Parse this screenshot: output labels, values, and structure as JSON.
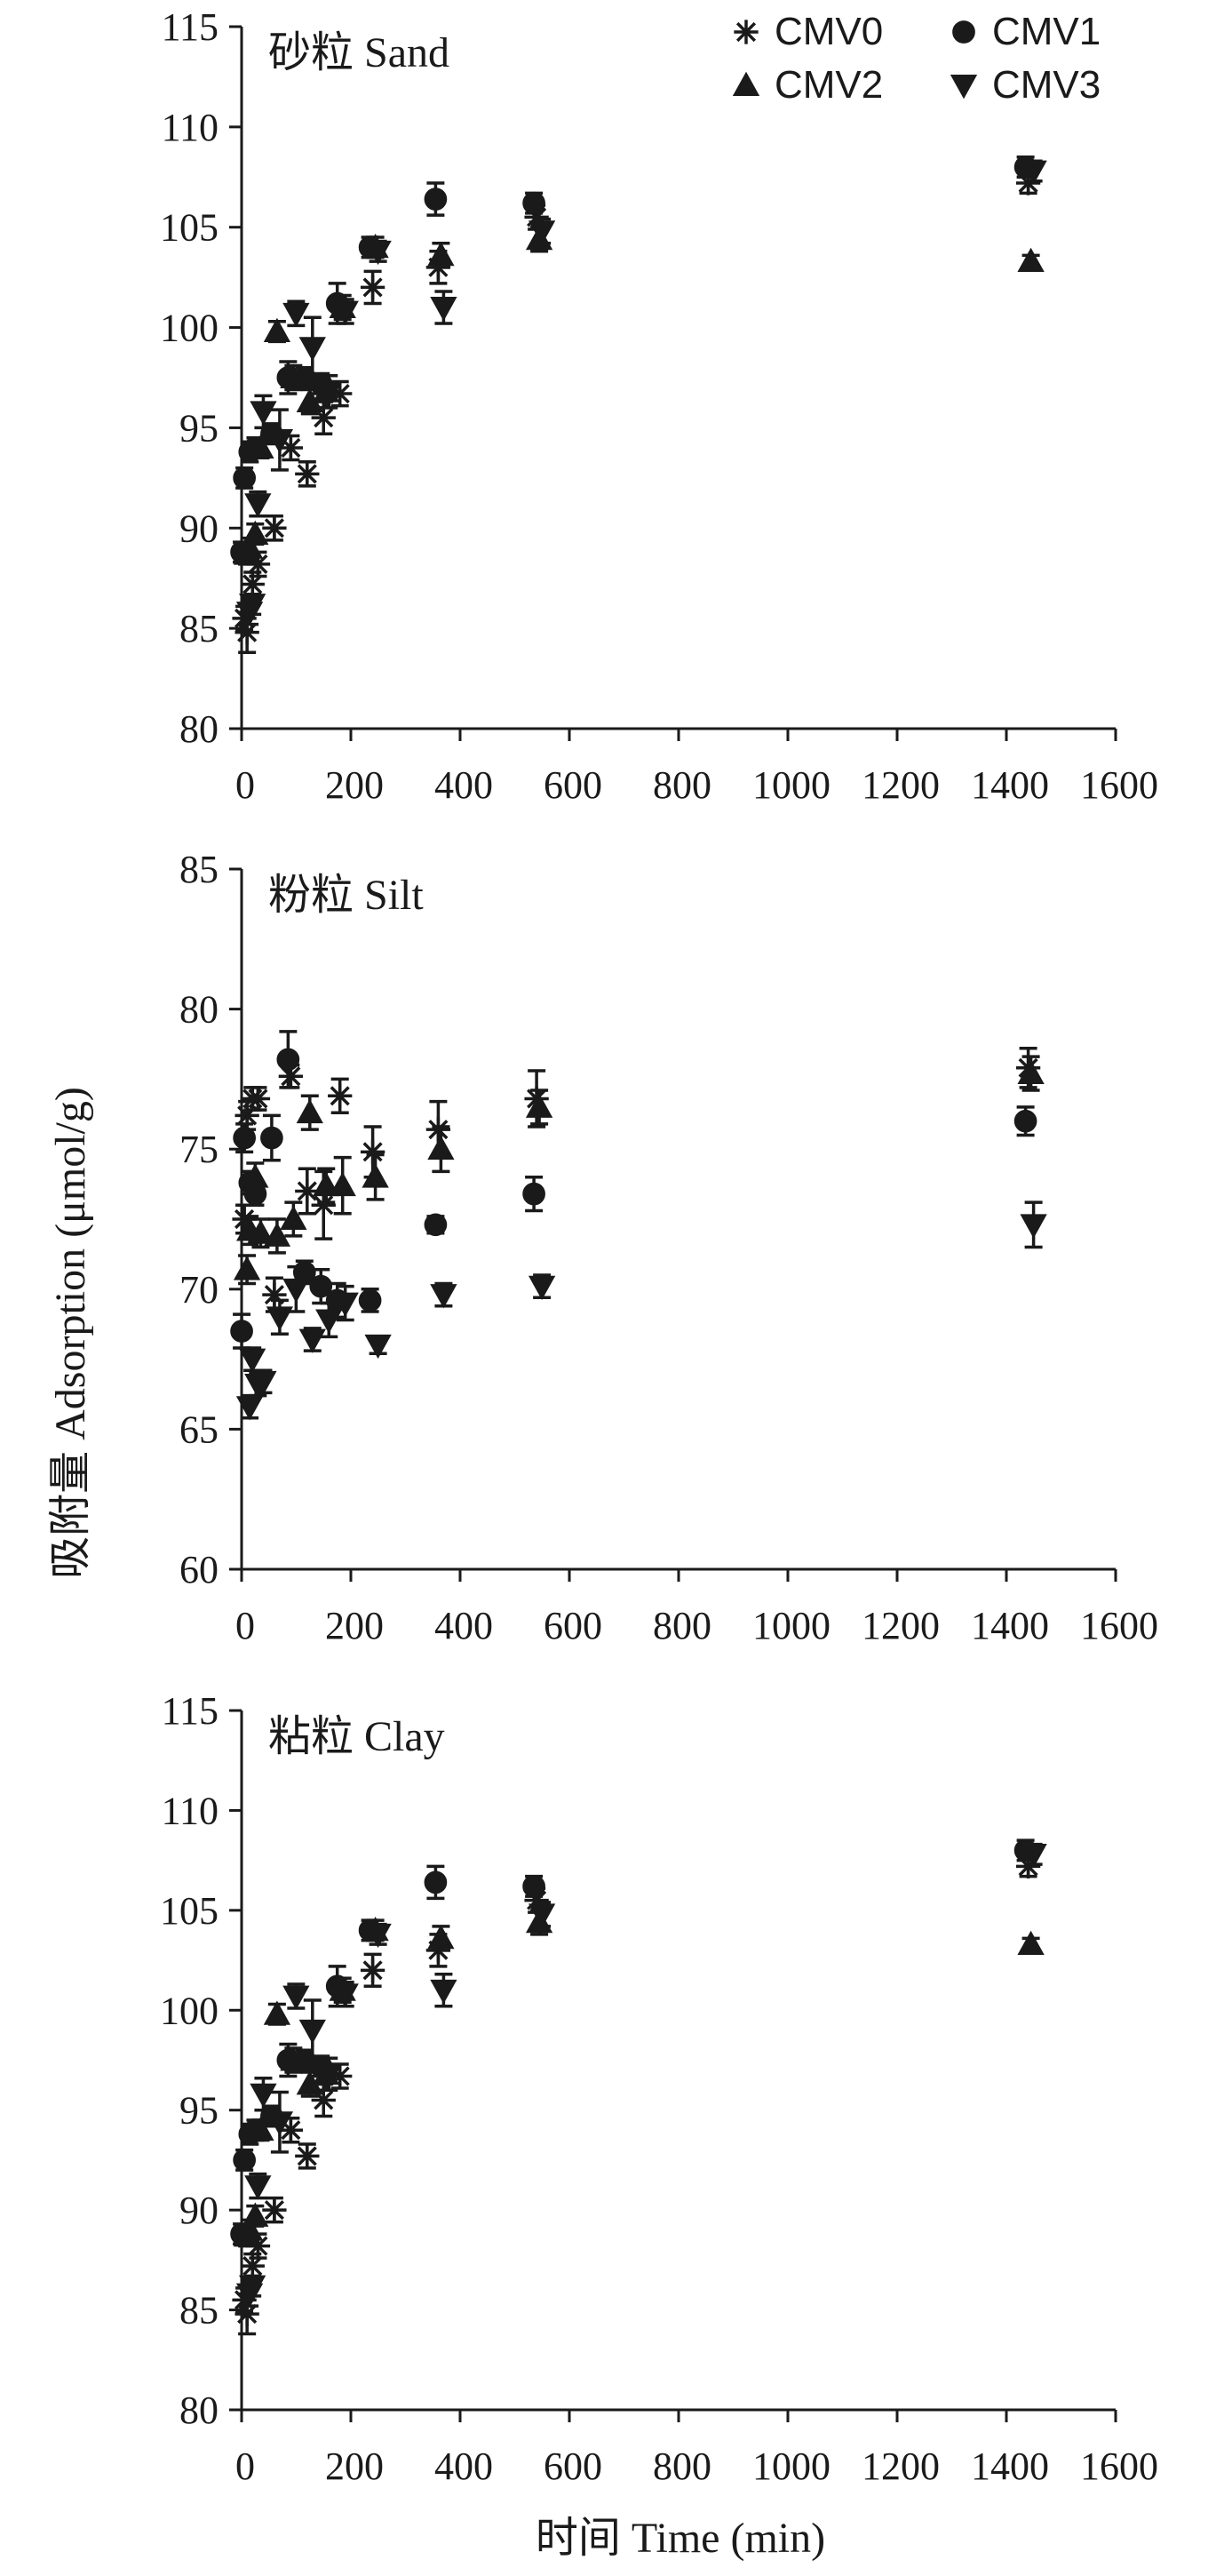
{
  "figure": {
    "ylabel": "吸附量 Adsorption (μmol/g)",
    "xlabel": "时间 Time (min)"
  },
  "legend": [
    {
      "name": "CMV0",
      "marker": "asterisk"
    },
    {
      "name": "CMV1",
      "marker": "circle"
    },
    {
      "name": "CMV2",
      "marker": "triangle-up"
    },
    {
      "name": "CMV3",
      "marker": "triangle-down"
    }
  ],
  "chart_data": [
    {
      "type": "scatter",
      "title": "砂粒 Sand",
      "xlim": [
        0,
        1600
      ],
      "ylim": [
        80,
        115
      ],
      "xticks": [
        0,
        200,
        400,
        600,
        800,
        1000,
        1200,
        1400,
        1600
      ],
      "yticks": [
        80,
        85,
        90,
        95,
        100,
        105,
        110,
        115
      ],
      "grid": false,
      "legend_position": "top-right",
      "series": [
        {
          "name": "CMV0",
          "x": [
            5,
            10,
            20,
            30,
            60,
            90,
            120,
            150,
            180,
            240,
            360,
            540,
            1440
          ],
          "y": [
            85.5,
            84.8,
            87.2,
            88.2,
            90.0,
            94.0,
            92.7,
            95.5,
            96.7,
            102.0,
            103.0,
            105.5,
            107.2
          ],
          "err": [
            0.6,
            1.0,
            0.6,
            0.6,
            0.6,
            0.6,
            0.6,
            0.8,
            0.6,
            0.8,
            0.8,
            0.6,
            0.5
          ]
        },
        {
          "name": "CMV1",
          "x": [
            5,
            10,
            20,
            30,
            60,
            90,
            120,
            150,
            180,
            240,
            360,
            540,
            1440
          ],
          "y": [
            88.8,
            92.5,
            93.8,
            94.0,
            94.7,
            97.5,
            97.5,
            97.2,
            101.2,
            104.0,
            106.4,
            106.2,
            108.0
          ],
          "err": [
            0.5,
            0.5,
            0.5,
            0.5,
            0.5,
            0.8,
            0.5,
            0.5,
            1.0,
            0.5,
            0.8,
            0.5,
            0.5
          ]
        },
        {
          "name": "CMV2",
          "x": [
            5,
            10,
            20,
            30,
            60,
            90,
            120,
            150,
            180,
            240,
            360,
            540,
            1440
          ],
          "y": [
            88.7,
            89.0,
            89.7,
            94.0,
            99.8,
            97.5,
            96.3,
            96.8,
            101.0,
            104.0,
            103.6,
            104.4,
            103.3
          ],
          "err": [
            0.5,
            0.5,
            0.5,
            0.5,
            0.5,
            0.6,
            0.6,
            0.8,
            0.6,
            0.5,
            0.6,
            0.6,
            0.3
          ]
        },
        {
          "name": "CMV3",
          "x": [
            5,
            10,
            20,
            30,
            60,
            90,
            120,
            150,
            180,
            240,
            360,
            540,
            1440
          ],
          "y": [
            85.8,
            86.2,
            91.2,
            95.8,
            94.4,
            100.7,
            99.0,
            96.8,
            100.8,
            103.8,
            101.0,
            104.8,
            107.8
          ],
          "err": [
            0.6,
            0.5,
            0.6,
            0.8,
            1.5,
            0.6,
            1.5,
            0.8,
            0.6,
            0.5,
            0.8,
            0.6,
            0.5
          ]
        }
      ]
    },
    {
      "type": "scatter",
      "title": "粉粒 Silt",
      "xlim": [
        0,
        1600
      ],
      "ylim": [
        60,
        85
      ],
      "xticks": [
        0,
        200,
        400,
        600,
        800,
        1000,
        1200,
        1400,
        1600
      ],
      "yticks": [
        60,
        65,
        70,
        75,
        80,
        85
      ],
      "grid": false,
      "series": [
        {
          "name": "CMV0",
          "x": [
            5,
            10,
            20,
            30,
            60,
            90,
            120,
            150,
            180,
            240,
            360,
            540,
            1440
          ],
          "y": [
            72.5,
            76.2,
            76.8,
            76.8,
            69.8,
            77.6,
            73.5,
            73.0,
            76.9,
            74.9,
            75.7,
            76.8,
            77.9
          ],
          "err": [
            0.5,
            0.5,
            0.4,
            0.4,
            0.6,
            0.4,
            0.8,
            1.2,
            0.6,
            0.9,
            1.0,
            1.0,
            0.7
          ]
        },
        {
          "name": "CMV1",
          "x": [
            5,
            10,
            20,
            30,
            60,
            90,
            120,
            150,
            180,
            240,
            360,
            540,
            1440
          ],
          "y": [
            68.5,
            75.4,
            73.8,
            73.4,
            75.4,
            78.2,
            70.6,
            70.1,
            69.6,
            69.6,
            72.3,
            73.4,
            76.0
          ],
          "err": [
            0.6,
            0.5,
            0.4,
            0.4,
            0.8,
            1.0,
            0.4,
            0.6,
            0.6,
            0.4,
            0.3,
            0.6,
            0.5
          ]
        },
        {
          "name": "CMV2",
          "x": [
            5,
            10,
            20,
            30,
            60,
            90,
            120,
            150,
            180,
            240,
            360,
            540,
            1440
          ],
          "y": [
            70.7,
            72.1,
            74.0,
            72.0,
            71.9,
            72.5,
            76.3,
            73.7,
            73.7,
            74.0,
            75.0,
            76.5,
            77.7
          ],
          "err": [
            0.5,
            0.5,
            0.5,
            0.5,
            0.6,
            0.6,
            0.6,
            0.6,
            1.0,
            0.8,
            0.8,
            0.6,
            0.6
          ]
        },
        {
          "name": "CMV3",
          "x": [
            5,
            10,
            20,
            30,
            60,
            90,
            120,
            150,
            180,
            240,
            360,
            540,
            1440
          ],
          "y": [
            65.8,
            67.5,
            66.6,
            66.7,
            69.0,
            70.0,
            68.2,
            68.9,
            69.5,
            68.0,
            69.8,
            70.1,
            72.3
          ],
          "err": [
            0.4,
            0.4,
            0.4,
            0.4,
            0.6,
            0.8,
            0.4,
            0.6,
            0.6,
            0.3,
            0.4,
            0.4,
            0.8
          ]
        }
      ]
    },
    {
      "type": "scatter",
      "title": "粘粒 Clay",
      "xlim": [
        0,
        1600
      ],
      "ylim": [
        80,
        115
      ],
      "xticks": [
        0,
        200,
        400,
        600,
        800,
        1000,
        1200,
        1400,
        1600
      ],
      "yticks": [
        80,
        85,
        90,
        95,
        100,
        105,
        110,
        115
      ],
      "grid": false,
      "series": [
        {
          "name": "CMV0",
          "x": [
            5,
            10,
            20,
            30,
            60,
            90,
            120,
            150,
            180,
            240,
            360,
            540,
            1440
          ],
          "y": [
            85.5,
            84.8,
            87.2,
            88.2,
            90.0,
            94.0,
            92.7,
            95.5,
            96.7,
            102.0,
            103.0,
            105.5,
            107.2
          ],
          "err": [
            0.6,
            1.0,
            0.6,
            0.6,
            0.6,
            0.6,
            0.6,
            0.8,
            0.6,
            0.8,
            0.8,
            0.6,
            0.5
          ]
        },
        {
          "name": "CMV1",
          "x": [
            5,
            10,
            20,
            30,
            60,
            90,
            120,
            150,
            180,
            240,
            360,
            540,
            1440
          ],
          "y": [
            88.8,
            92.5,
            93.8,
            94.0,
            94.7,
            97.5,
            97.5,
            97.2,
            101.2,
            104.0,
            106.4,
            106.2,
            108.0
          ],
          "err": [
            0.5,
            0.5,
            0.5,
            0.5,
            0.5,
            0.8,
            0.5,
            0.5,
            1.0,
            0.5,
            0.8,
            0.5,
            0.5
          ]
        },
        {
          "name": "CMV2",
          "x": [
            5,
            10,
            20,
            30,
            60,
            90,
            120,
            150,
            180,
            240,
            360,
            540,
            1440
          ],
          "y": [
            88.7,
            89.0,
            89.7,
            94.0,
            99.8,
            97.5,
            96.3,
            96.8,
            101.0,
            104.0,
            103.6,
            104.4,
            103.3
          ],
          "err": [
            0.5,
            0.5,
            0.5,
            0.5,
            0.5,
            0.6,
            0.6,
            0.8,
            0.6,
            0.5,
            0.6,
            0.6,
            0.3
          ]
        },
        {
          "name": "CMV3",
          "x": [
            5,
            10,
            20,
            30,
            60,
            90,
            120,
            150,
            180,
            240,
            360,
            540,
            1440
          ],
          "y": [
            85.8,
            86.2,
            91.2,
            95.8,
            94.4,
            100.7,
            99.0,
            96.8,
            100.8,
            103.8,
            101.0,
            104.8,
            107.8
          ],
          "err": [
            0.6,
            0.5,
            0.6,
            0.8,
            1.5,
            0.6,
            1.5,
            0.8,
            0.6,
            0.5,
            0.8,
            0.6,
            0.5
          ]
        }
      ]
    }
  ]
}
